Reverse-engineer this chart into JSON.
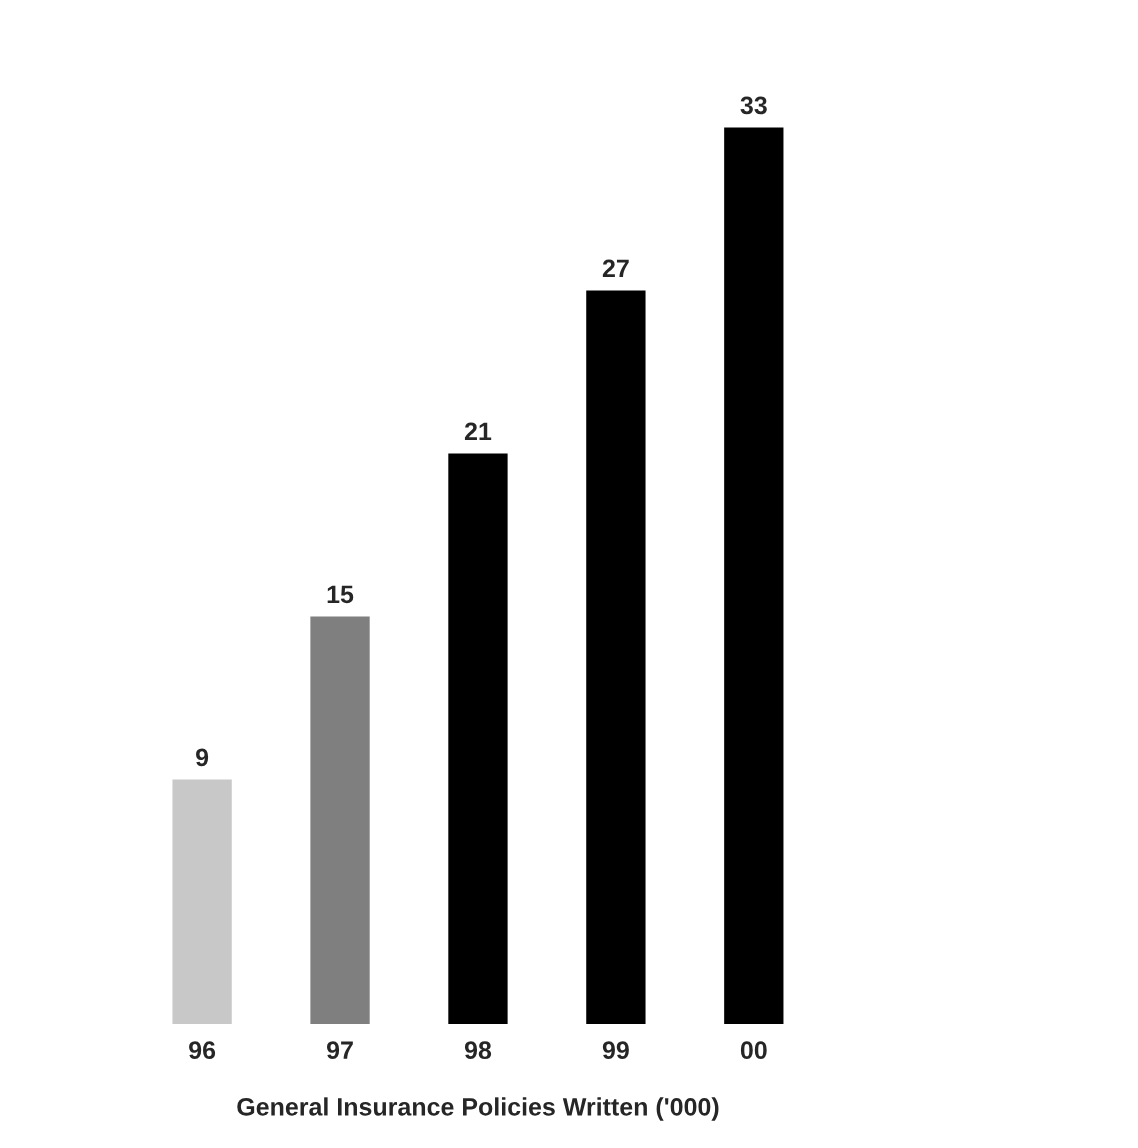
{
  "chart_data": {
    "type": "bar",
    "xlabel": "General Insurance Policies Written ('000)",
    "categories": [
      "96",
      "97",
      "98",
      "99",
      "00"
    ],
    "values": [
      9,
      15,
      21,
      27,
      33
    ],
    "colors": [
      "#c8c8c8",
      "#7f7f7f",
      "#000000",
      "#000000",
      "#000000"
    ],
    "data_labels": true,
    "grid": false,
    "legend": false
  }
}
